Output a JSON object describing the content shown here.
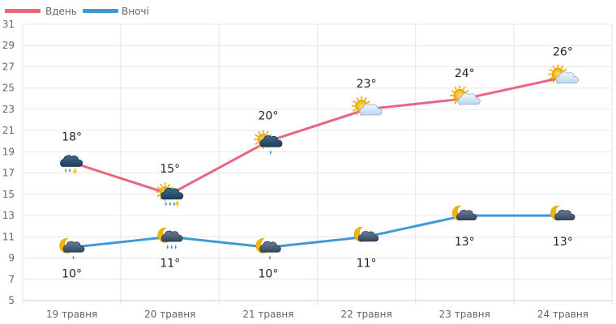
{
  "chart_data": {
    "type": "line",
    "categories": [
      "19 травня",
      "20 травня",
      "21 травня",
      "22 травня",
      "23 травня",
      "24 травня"
    ],
    "ylim": [
      5,
      31
    ],
    "yticks": [
      5,
      7,
      9,
      11,
      13,
      15,
      17,
      19,
      21,
      23,
      25,
      27,
      29,
      31
    ],
    "grid": true,
    "legend_position": "top-left",
    "series": [
      {
        "name": "Вдень",
        "color": "#e8667f",
        "values": [
          18,
          15,
          20,
          23,
          24,
          26
        ],
        "labels": [
          "18°",
          "15°",
          "20°",
          "23°",
          "24°",
          "26°"
        ],
        "icons": [
          "storm-rain-icon",
          "sun-cloud-thunder-rain-icon",
          "sun-cloud-rain-icon",
          "sun-cloud-icon",
          "sun-cloud-icon",
          "sun-cloud-icon"
        ]
      },
      {
        "name": "Вночі",
        "color": "#3f9ad4",
        "values": [
          10,
          11,
          10,
          11,
          13,
          13
        ],
        "labels": [
          "10°",
          "11°",
          "10°",
          "11°",
          "13°",
          "13°"
        ],
        "icons": [
          "moon-cloud-rain-icon",
          "moon-cloud-rain-icon",
          "moon-cloud-rain-icon",
          "moon-cloud-icon",
          "moon-cloud-icon",
          "moon-cloud-icon"
        ]
      }
    ]
  }
}
